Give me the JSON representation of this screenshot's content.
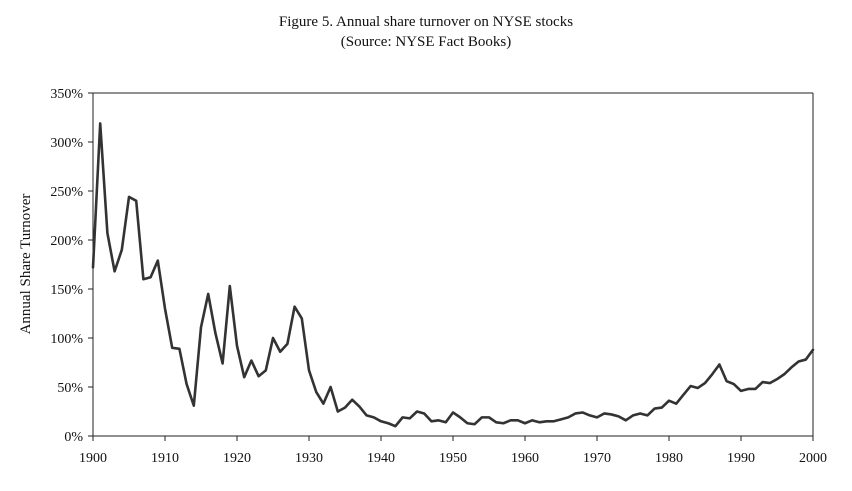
{
  "chart_data": {
    "type": "line",
    "title": "Figure 5.  Annual share turnover on NYSE stocks",
    "subtitle": "(Source:  NYSE Fact Books)",
    "xlabel": "",
    "ylabel": "Annual Share Turnover",
    "xlim": [
      1900,
      2000
    ],
    "ylim": [
      0,
      350
    ],
    "x_ticks": [
      1900,
      1910,
      1920,
      1930,
      1940,
      1950,
      1960,
      1970,
      1980,
      1990,
      2000
    ],
    "y_ticks": [
      0,
      50,
      100,
      150,
      200,
      250,
      300,
      350
    ],
    "y_tick_labels": [
      "0%",
      "50%",
      "100%",
      "150%",
      "200%",
      "250%",
      "300%",
      "350%"
    ],
    "grid": false,
    "line_color": "#333333",
    "x": [
      1900,
      1901,
      1902,
      1903,
      1904,
      1905,
      1906,
      1907,
      1908,
      1909,
      1910,
      1911,
      1912,
      1913,
      1914,
      1915,
      1916,
      1917,
      1918,
      1919,
      1920,
      1921,
      1922,
      1923,
      1924,
      1925,
      1926,
      1927,
      1928,
      1929,
      1930,
      1931,
      1932,
      1933,
      1934,
      1935,
      1936,
      1937,
      1938,
      1939,
      1940,
      1941,
      1942,
      1943,
      1944,
      1945,
      1946,
      1947,
      1948,
      1949,
      1950,
      1951,
      1952,
      1953,
      1954,
      1955,
      1956,
      1957,
      1958,
      1959,
      1960,
      1961,
      1962,
      1963,
      1964,
      1965,
      1966,
      1967,
      1968,
      1969,
      1970,
      1971,
      1972,
      1973,
      1974,
      1975,
      1976,
      1977,
      1978,
      1979,
      1980,
      1981,
      1982,
      1983,
      1984,
      1985,
      1986,
      1987,
      1988,
      1989,
      1990,
      1991,
      1992,
      1993,
      1994,
      1995,
      1996,
      1997,
      1998,
      1999,
      2000
    ],
    "values": [
      172,
      319,
      207,
      168,
      190,
      244,
      240,
      160,
      162,
      179,
      130,
      90,
      89,
      53,
      31,
      111,
      145,
      105,
      74,
      153,
      92,
      60,
      77,
      61,
      67,
      100,
      86,
      94,
      132,
      120,
      67,
      45,
      33,
      50,
      25,
      29,
      37,
      30,
      21,
      19,
      15,
      13,
      10,
      19,
      18,
      25,
      23,
      15,
      16,
      14,
      24,
      19,
      13,
      12,
      19,
      19,
      14,
      13,
      16,
      16,
      13,
      16,
      14,
      15,
      15,
      17,
      19,
      23,
      24,
      21,
      19,
      23,
      22,
      20,
      16,
      21,
      23,
      21,
      28,
      29,
      36,
      33,
      42,
      51,
      49,
      54,
      63,
      73,
      56,
      53,
      46,
      48,
      48,
      55,
      54,
      58,
      63,
      70,
      76,
      78,
      88
    ]
  }
}
